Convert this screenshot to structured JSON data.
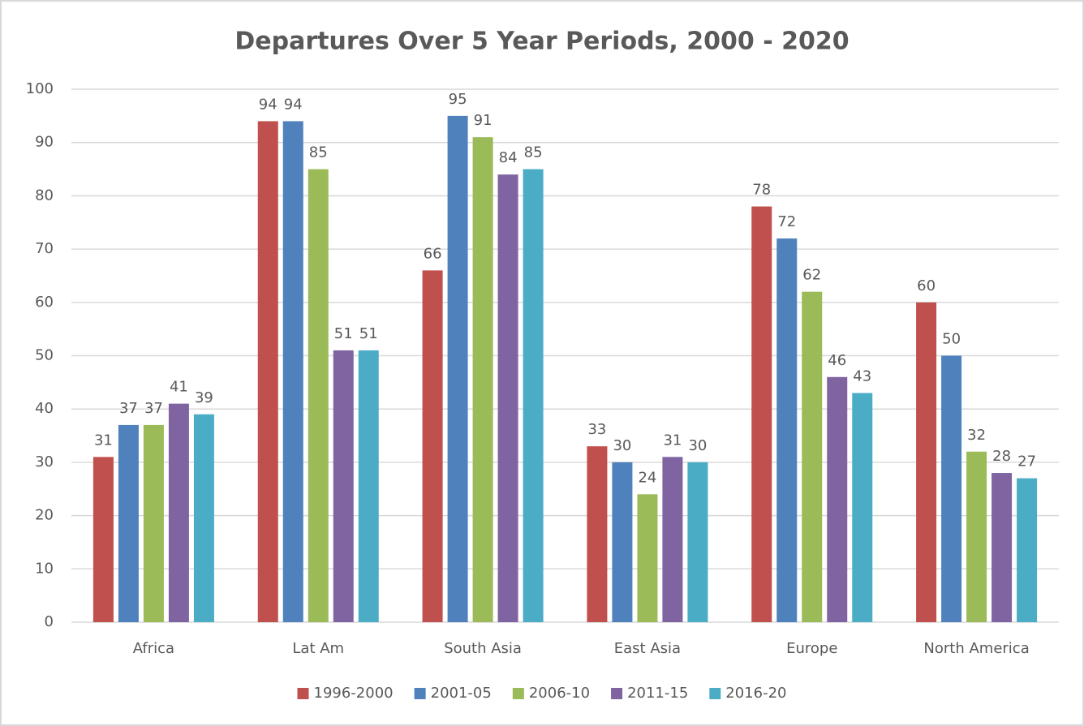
{
  "chart_data": {
    "type": "bar",
    "title": "Departures Over 5 Year Periods, 2000 - 2020",
    "categories": [
      "Africa",
      "Lat Am",
      "South Asia",
      "East Asia",
      "Europe",
      "North America"
    ],
    "series": [
      {
        "name": "1996-2000",
        "color": "#c0504d",
        "values": [
          31,
          94,
          66,
          33,
          78,
          60
        ]
      },
      {
        "name": "2001-05",
        "color": "#4f81bd",
        "values": [
          37,
          94,
          95,
          30,
          72,
          50
        ]
      },
      {
        "name": "2006-10",
        "color": "#9bbb59",
        "values": [
          37,
          85,
          91,
          24,
          62,
          32
        ]
      },
      {
        "name": "2011-15",
        "color": "#8064a2",
        "values": [
          41,
          51,
          84,
          31,
          46,
          28
        ]
      },
      {
        "name": "2016-20",
        "color": "#4bacc6",
        "values": [
          39,
          51,
          85,
          30,
          43,
          27
        ]
      }
    ],
    "ylim": [
      0,
      100
    ],
    "yticks": [
      0,
      10,
      20,
      30,
      40,
      50,
      60,
      70,
      80,
      90,
      100
    ],
    "grid": true,
    "legend": "bottom"
  }
}
